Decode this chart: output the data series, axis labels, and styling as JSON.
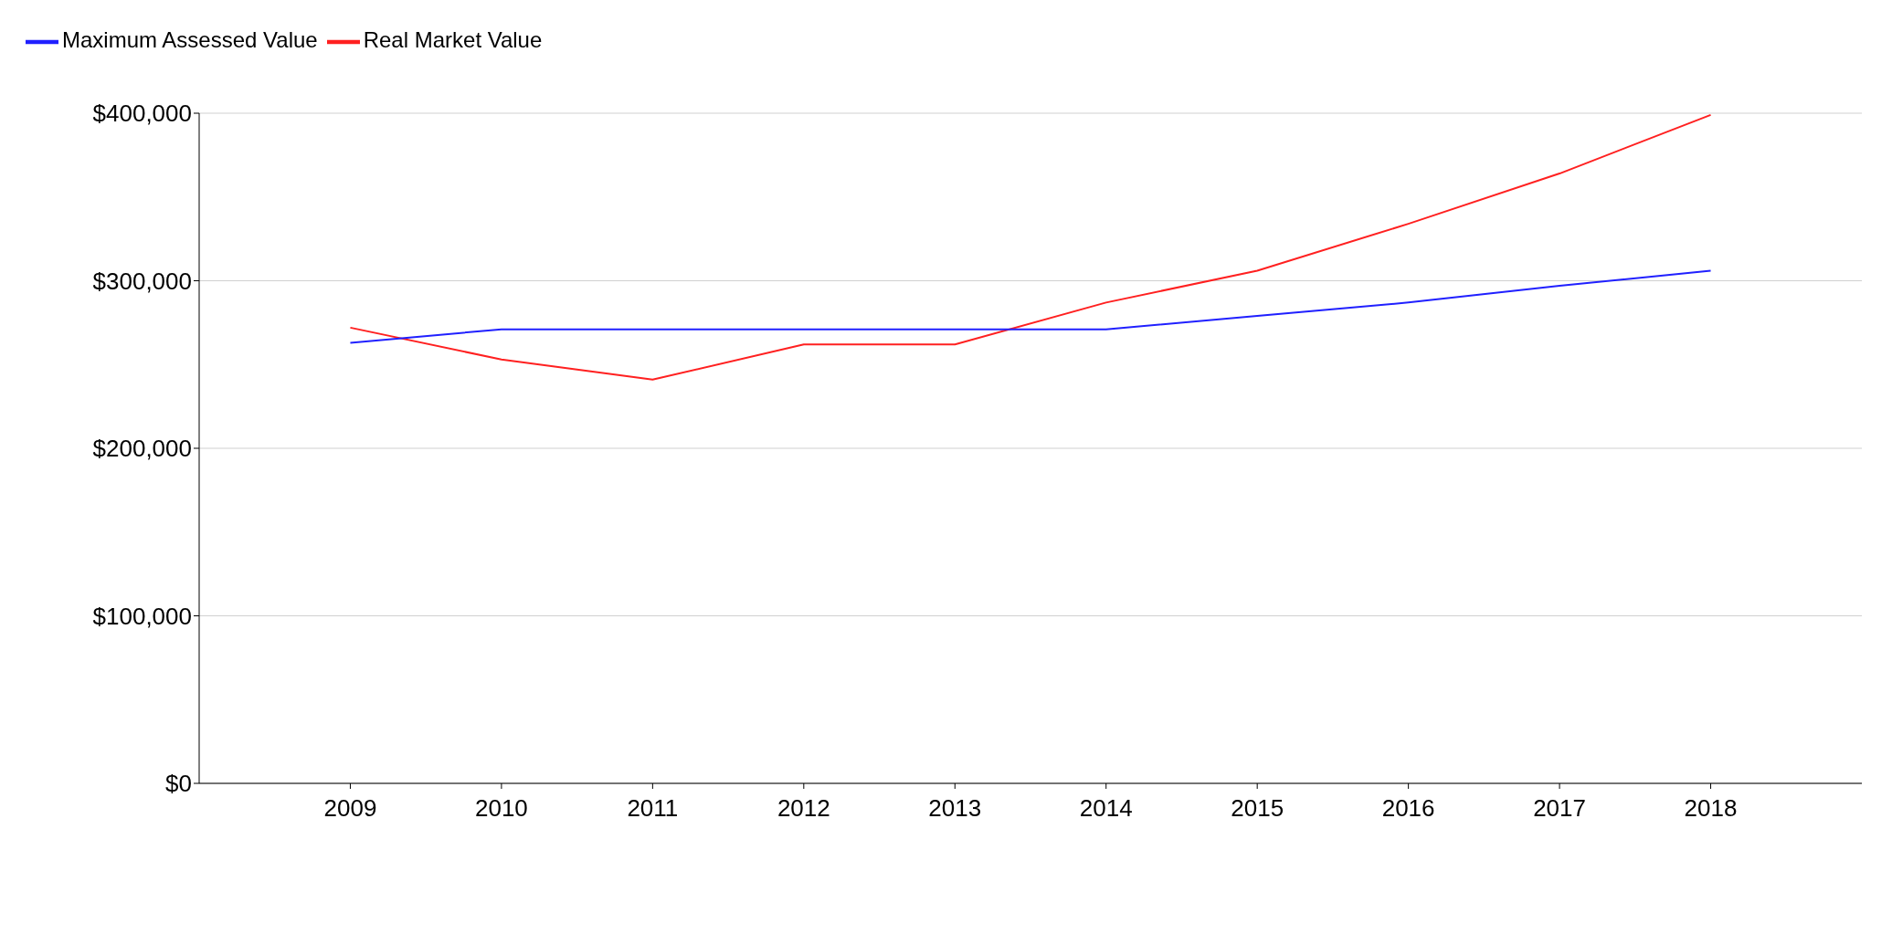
{
  "chart_data": {
    "type": "line",
    "x": [
      2009,
      2010,
      2011,
      2012,
      2013,
      2014,
      2015,
      2016,
      2017,
      2018
    ],
    "series": [
      {
        "name": "Real Market Value",
        "color": "#ff2020",
        "values": [
          272000,
          253000,
          241000,
          262000,
          262000,
          287000,
          306000,
          334000,
          364000,
          399000
        ]
      },
      {
        "name": "Maximum Assessed Value",
        "color": "#2020ff",
        "values": [
          263000,
          271000,
          271000,
          271000,
          271000,
          271000,
          279000,
          287000,
          297000,
          306000
        ]
      }
    ],
    "xlim": [
      2008,
      2019
    ],
    "xticks": [
      2009,
      2010,
      2011,
      2012,
      2013,
      2014,
      2015,
      2016,
      2017,
      2018
    ],
    "ylim": [
      0,
      400000
    ],
    "yticks": [
      {
        "value": 0,
        "label": "$0"
      },
      {
        "value": 100000,
        "label": "$100,000"
      },
      {
        "value": 200000,
        "label": "$200,000"
      },
      {
        "value": 300000,
        "label": "$300,000"
      },
      {
        "value": 400000,
        "label": "$400,000"
      }
    ],
    "grid": "y",
    "legend": "top left",
    "marker": "none",
    "line_style": "solid"
  }
}
